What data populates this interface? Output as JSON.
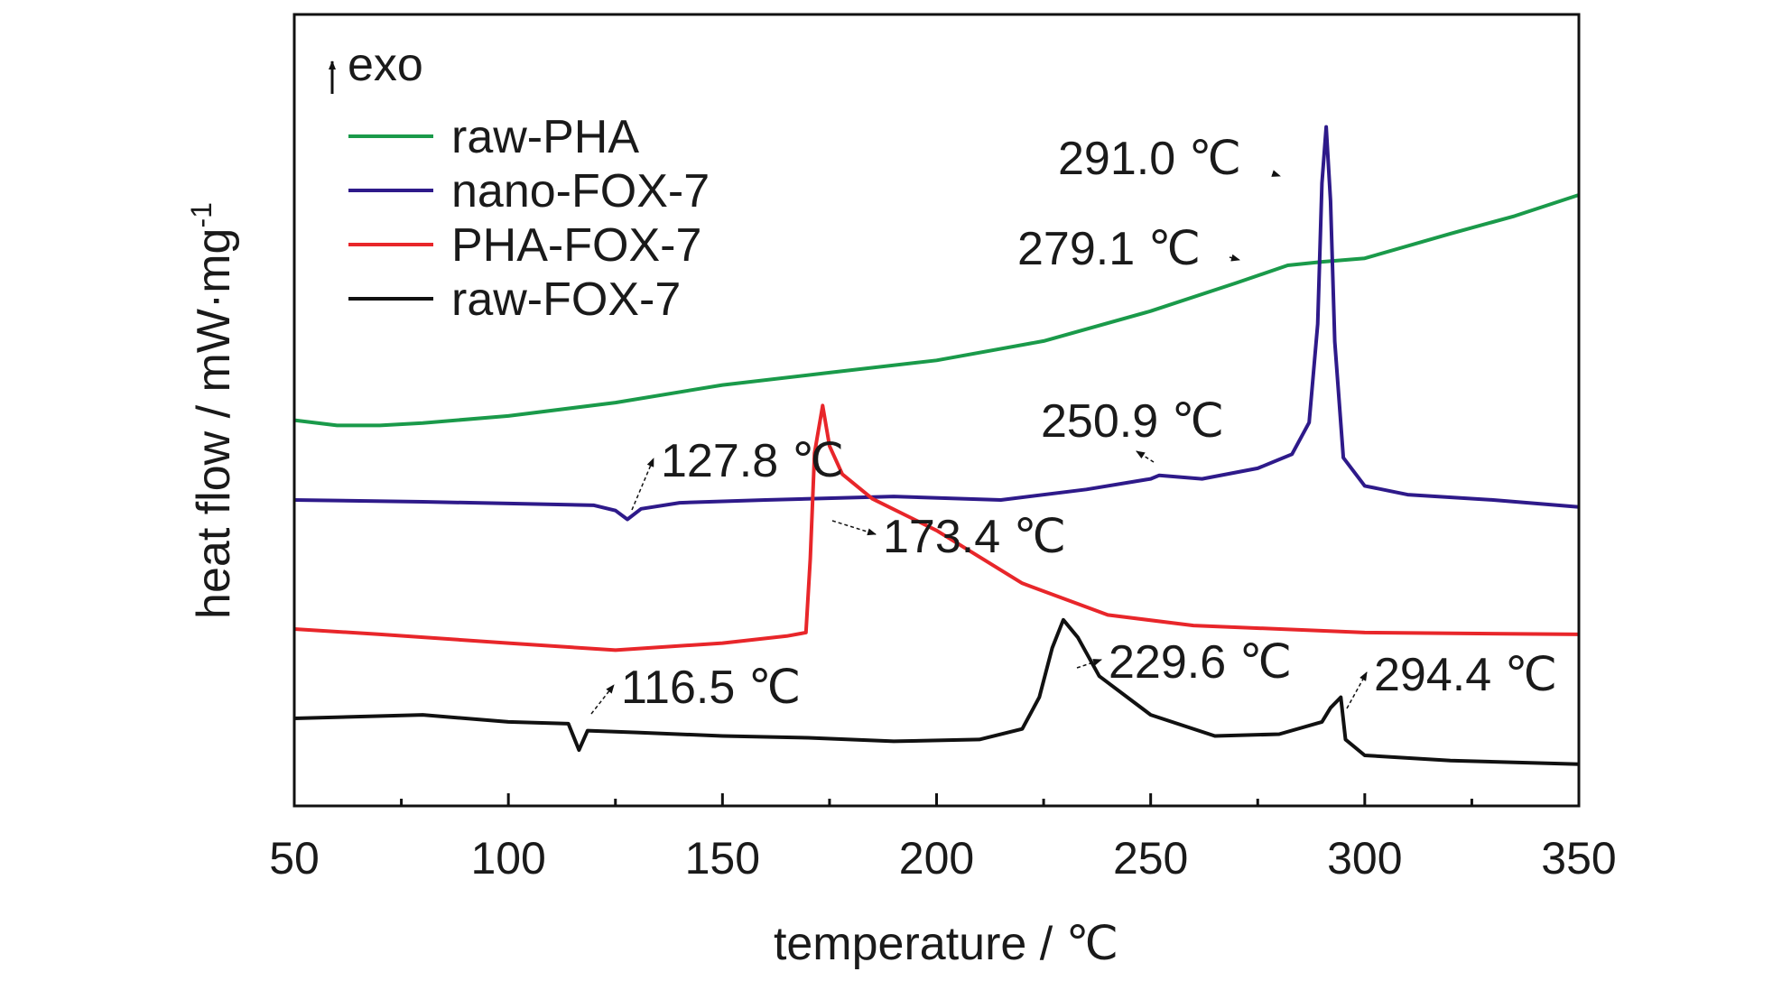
{
  "chart_data": {
    "type": "line",
    "xlabel": "temperature / ℃",
    "ylabel_main": "heat flow / mW·mg",
    "ylabel_sup": "-1",
    "xlim": [
      50,
      350
    ],
    "xticks": [
      "50",
      "100",
      "150",
      "200",
      "250",
      "300",
      "350"
    ],
    "yticks_shown": false,
    "legend": {
      "placement": "top-left",
      "header": "exo",
      "header_arrow": "up-arrow",
      "entries": [
        {
          "label": "raw-PHA",
          "color": "#1a9a4a"
        },
        {
          "label": "nano-FOX-7",
          "color": "#2e1a8a"
        },
        {
          "label": "PHA-FOX-7",
          "color": "#e8262a"
        },
        {
          "label": "raw-FOX-7",
          "color": "#111111"
        }
      ]
    },
    "series": [
      {
        "name": "raw-PHA",
        "color": "#1a9a4a",
        "points": [
          [
            50,
            -0.4
          ],
          [
            60,
            -0.55
          ],
          [
            70,
            -0.55
          ],
          [
            80,
            -0.48
          ],
          [
            100,
            -0.28
          ],
          [
            125,
            0.1
          ],
          [
            150,
            0.6
          ],
          [
            175,
            0.95
          ],
          [
            200,
            1.3
          ],
          [
            225,
            1.85
          ],
          [
            250,
            2.7
          ],
          [
            270,
            3.5
          ],
          [
            282,
            4.0
          ],
          [
            290,
            4.1
          ],
          [
            300,
            4.2
          ],
          [
            320,
            4.9
          ],
          [
            335,
            5.4
          ],
          [
            350,
            6.0
          ]
        ]
      },
      {
        "name": "nano-FOX-7",
        "color": "#2e1a8a",
        "points": [
          [
            50,
            0.0
          ],
          [
            80,
            -0.05
          ],
          [
            100,
            -0.1
          ],
          [
            120,
            -0.15
          ],
          [
            125,
            -0.3
          ],
          [
            127.8,
            -0.55
          ],
          [
            131,
            -0.25
          ],
          [
            140,
            -0.08
          ],
          [
            160,
            0.0
          ],
          [
            190,
            0.1
          ],
          [
            215,
            0.0
          ],
          [
            235,
            0.3
          ],
          [
            250,
            0.6
          ],
          [
            252,
            0.7
          ],
          [
            262,
            0.6
          ],
          [
            275,
            0.9
          ],
          [
            283,
            1.3
          ],
          [
            287,
            2.2
          ],
          [
            289,
            5.0
          ],
          [
            290,
            9.0
          ],
          [
            291,
            10.6
          ],
          [
            292,
            8.5
          ],
          [
            293,
            4.5
          ],
          [
            295,
            1.2
          ],
          [
            300,
            0.4
          ],
          [
            310,
            0.15
          ],
          [
            330,
            0.0
          ],
          [
            350,
            -0.2
          ]
        ]
      },
      {
        "name": "PHA-FOX-7",
        "color": "#e8262a",
        "points": [
          [
            50,
            0.0
          ],
          [
            70,
            -0.15
          ],
          [
            100,
            -0.4
          ],
          [
            125,
            -0.6
          ],
          [
            150,
            -0.4
          ],
          [
            165,
            -0.2
          ],
          [
            169.5,
            -0.1
          ],
          [
            170.5,
            2.0
          ],
          [
            171.5,
            5.0
          ],
          [
            173.4,
            6.35
          ],
          [
            175,
            5.2
          ],
          [
            178,
            4.4
          ],
          [
            185,
            3.7
          ],
          [
            200,
            2.8
          ],
          [
            220,
            1.3
          ],
          [
            240,
            0.4
          ],
          [
            260,
            0.1
          ],
          [
            300,
            -0.1
          ],
          [
            350,
            -0.15
          ]
        ]
      },
      {
        "name": "raw-FOX-7",
        "color": "#111111",
        "points": [
          [
            50,
            0.0
          ],
          [
            80,
            0.1
          ],
          [
            100,
            -0.1
          ],
          [
            114,
            -0.15
          ],
          [
            116.5,
            -0.9
          ],
          [
            118.5,
            -0.35
          ],
          [
            130,
            -0.4
          ],
          [
            150,
            -0.5
          ],
          [
            170,
            -0.55
          ],
          [
            190,
            -0.65
          ],
          [
            210,
            -0.6
          ],
          [
            220,
            -0.3
          ],
          [
            224,
            0.6
          ],
          [
            227,
            2.0
          ],
          [
            229.6,
            2.8
          ],
          [
            233,
            2.3
          ],
          [
            238,
            1.2
          ],
          [
            250,
            0.1
          ],
          [
            265,
            -0.5
          ],
          [
            280,
            -0.45
          ],
          [
            290,
            -0.1
          ],
          [
            292,
            0.3
          ],
          [
            294.4,
            0.6
          ],
          [
            295.5,
            -0.6
          ],
          [
            300,
            -1.05
          ],
          [
            320,
            -1.2
          ],
          [
            350,
            -1.3
          ]
        ]
      }
    ],
    "annotations": [
      {
        "text": "291.0 ℃",
        "series": "nano-FOX-7",
        "x": 291.0
      },
      {
        "text": "279.1 ℃",
        "series": "raw-PHA",
        "x": 279.1
      },
      {
        "text": "250.9 ℃",
        "series": "nano-FOX-7",
        "x": 250.9
      },
      {
        "text": "127.8 ℃",
        "series": "nano-FOX-7",
        "x": 127.8
      },
      {
        "text": "173.4 ℃",
        "series": "PHA-FOX-7",
        "x": 173.4
      },
      {
        "text": "116.5 ℃",
        "series": "raw-FOX-7",
        "x": 116.5
      },
      {
        "text": "229.6 ℃",
        "series": "raw-FOX-7",
        "x": 229.6
      },
      {
        "text": "294.4 ℃",
        "series": "raw-FOX-7",
        "x": 294.4
      }
    ]
  }
}
